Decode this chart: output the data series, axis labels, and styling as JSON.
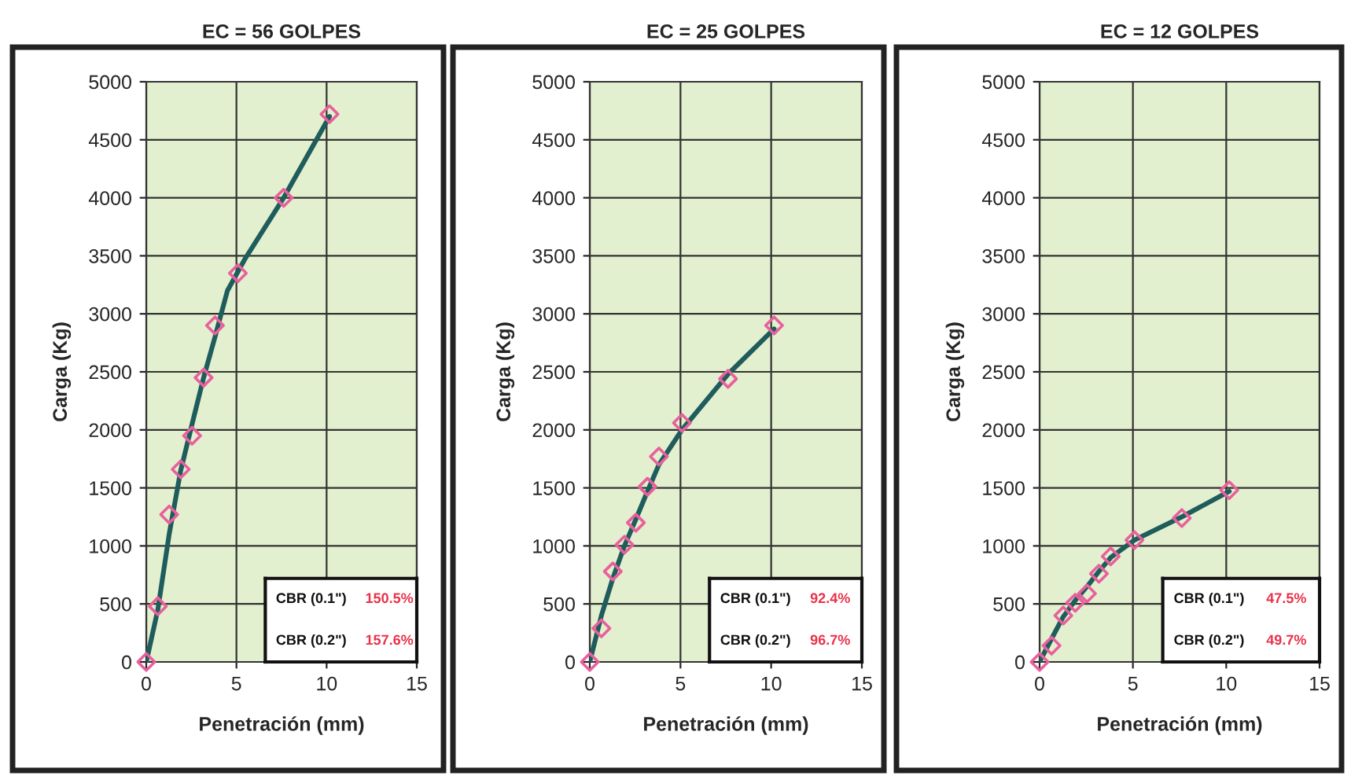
{
  "chart_data": [
    {
      "type": "scatter",
      "title": "EC = 56 GOLPES",
      "xlabel": "Penetración (mm)",
      "ylabel": "Carga (Kg)",
      "xlim": [
        0,
        15
      ],
      "ylim": [
        0,
        5000
      ],
      "xticks": [
        0,
        5,
        10,
        15
      ],
      "yticks": [
        0,
        500,
        1000,
        1500,
        2000,
        2500,
        3000,
        3500,
        4000,
        4500,
        5000
      ],
      "grid": true,
      "series": [
        {
          "type": "line",
          "color": "#1f5c5c",
          "marker": "none",
          "x": [
            0,
            0.64,
            1.27,
            1.91,
            2.54,
            3.18,
            3.81,
            4.5,
            5.5,
            7.62,
            10.16
          ],
          "values": [
            0,
            450,
            1100,
            1650,
            2050,
            2450,
            2800,
            3200,
            3480,
            4000,
            4700
          ]
        },
        {
          "color": "#e8609c",
          "marker": "diamond",
          "x": [
            0,
            0.64,
            1.27,
            1.91,
            2.54,
            3.18,
            3.81,
            5.08,
            7.62,
            10.16
          ],
          "values": [
            0,
            480,
            1270,
            1660,
            1950,
            2450,
            2900,
            3350,
            4000,
            4720
          ]
        }
      ],
      "annotations": [
        "CBR (0.1\")",
        "150.5%",
        "CBR (0.2\")",
        "157.6%"
      ]
    },
    {
      "type": "scatter",
      "title": "EC = 25 GOLPES",
      "xlabel": "Penetración (mm)",
      "ylabel": "Carga (Kg)",
      "xlim": [
        0,
        15
      ],
      "ylim": [
        0,
        5000
      ],
      "xticks": [
        0,
        5,
        10,
        15
      ],
      "yticks": [
        0,
        500,
        1000,
        1500,
        2000,
        2500,
        3000,
        3500,
        4000,
        4500,
        5000
      ],
      "grid": true,
      "series": [
        {
          "type": "line",
          "color": "#1f5c5c",
          "marker": "none",
          "x": [
            0,
            0.64,
            1.27,
            1.91,
            2.54,
            3.18,
            3.81,
            5.08,
            7.62,
            10.16
          ],
          "values": [
            0,
            400,
            720,
            1000,
            1230,
            1470,
            1700,
            2000,
            2480,
            2870
          ]
        },
        {
          "color": "#e8609c",
          "marker": "diamond",
          "x": [
            0,
            0.64,
            1.27,
            1.91,
            2.54,
            3.18,
            3.81,
            5.08,
            7.62,
            10.16
          ],
          "values": [
            0,
            290,
            780,
            1010,
            1200,
            1510,
            1770,
            2060,
            2440,
            2900
          ]
        }
      ],
      "annotations": [
        "CBR (0.1\")",
        "92.4%",
        "CBR (0.2\")",
        "96.7%"
      ]
    },
    {
      "type": "scatter",
      "title": "EC = 12 GOLPES",
      "xlabel": "Penetración (mm)",
      "ylabel": "Carga (Kg)",
      "xlim": [
        0,
        15
      ],
      "ylim": [
        0,
        5000
      ],
      "xticks": [
        0,
        5,
        10,
        15
      ],
      "yticks": [
        0,
        500,
        1000,
        1500,
        2000,
        2500,
        3000,
        3500,
        4000,
        4500,
        5000
      ],
      "grid": true,
      "series": [
        {
          "type": "line",
          "color": "#1f5c5c",
          "marker": "none",
          "x": [
            0,
            0.64,
            1.27,
            1.91,
            2.54,
            3.18,
            3.81,
            5.08,
            7.62,
            10.16
          ],
          "values": [
            0,
            200,
            390,
            530,
            650,
            780,
            900,
            1050,
            1250,
            1470
          ]
        },
        {
          "color": "#e8609c",
          "marker": "diamond",
          "x": [
            0,
            0.64,
            1.27,
            1.91,
            2.54,
            3.18,
            3.81,
            5.08,
            7.62,
            10.16
          ],
          "values": [
            0,
            140,
            400,
            510,
            590,
            760,
            910,
            1050,
            1240,
            1480
          ]
        }
      ],
      "annotations": [
        "CBR (0.1\")",
        "47.5%",
        "CBR (0.2\")",
        "49.7%"
      ]
    }
  ]
}
